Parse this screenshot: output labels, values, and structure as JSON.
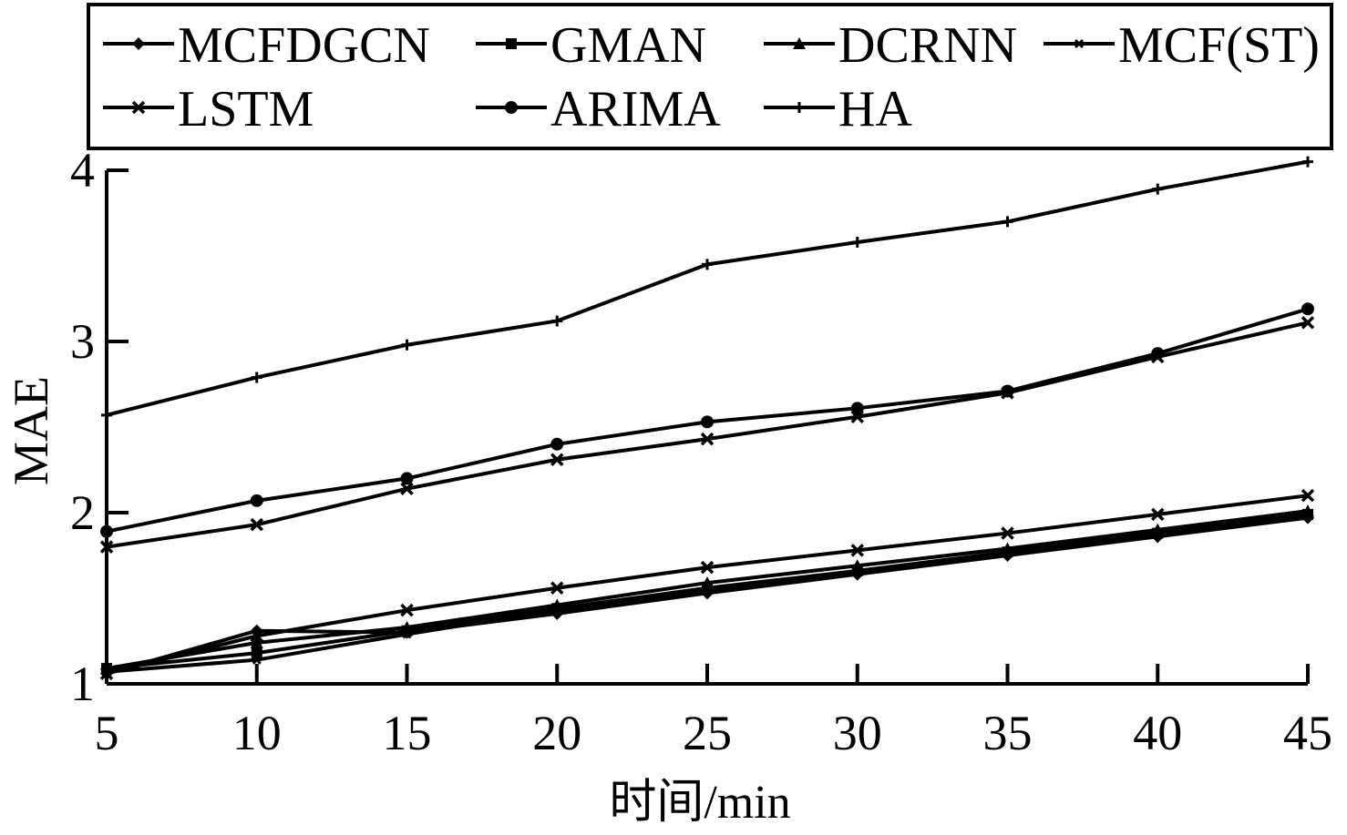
{
  "chart_data": {
    "type": "line",
    "title": "",
    "xlabel": "时间/min",
    "ylabel": "MAE",
    "x": [
      5,
      10,
      15,
      20,
      25,
      30,
      35,
      40,
      45
    ],
    "xticks": [
      "5",
      "10",
      "15",
      "20",
      "25",
      "30",
      "35",
      "40",
      "45"
    ],
    "yticks": [
      "1",
      "2",
      "3",
      "4"
    ],
    "xlim": [
      5,
      45
    ],
    "ylim": [
      1,
      4
    ],
    "grid": false,
    "legend_position": "top",
    "series": [
      {
        "name": "MCFDGCN",
        "marker": "diamond",
        "values": [
          1.06,
          1.31,
          1.3,
          1.41,
          1.53,
          1.64,
          1.75,
          1.86,
          1.97
        ]
      },
      {
        "name": "GMAN",
        "marker": "square",
        "values": [
          1.09,
          1.18,
          1.31,
          1.44,
          1.56,
          1.66,
          1.77,
          1.88,
          1.99
        ]
      },
      {
        "name": "DCRNN",
        "marker": "triangle",
        "values": [
          1.09,
          1.24,
          1.33,
          1.46,
          1.59,
          1.69,
          1.79,
          1.9,
          2.01
        ]
      },
      {
        "name": "MCF(ST)",
        "marker": "cross",
        "values": [
          1.07,
          1.14,
          1.29,
          1.43,
          1.55,
          1.65,
          1.76,
          1.87,
          1.99
        ]
      },
      {
        "name": "LSTM",
        "marker": "x",
        "values": [
          1.06,
          1.28,
          1.43,
          1.56,
          1.68,
          1.78,
          1.88,
          1.99,
          2.1
        ]
      },
      {
        "name": "ARIMA",
        "marker": "circle",
        "values": [
          1.89,
          2.07,
          2.2,
          2.4,
          2.53,
          2.61,
          2.71,
          2.93,
          3.19
        ]
      },
      {
        "name": "HA",
        "marker": "plus",
        "values": [
          2.57,
          2.79,
          2.98,
          3.12,
          3.45,
          3.58,
          3.7,
          3.89,
          4.05
        ]
      },
      {
        "name": "",
        "marker": "x",
        "values": [
          1.8,
          1.93,
          2.14,
          2.31,
          2.43,
          2.56,
          2.7,
          2.91,
          3.11
        ]
      }
    ]
  }
}
